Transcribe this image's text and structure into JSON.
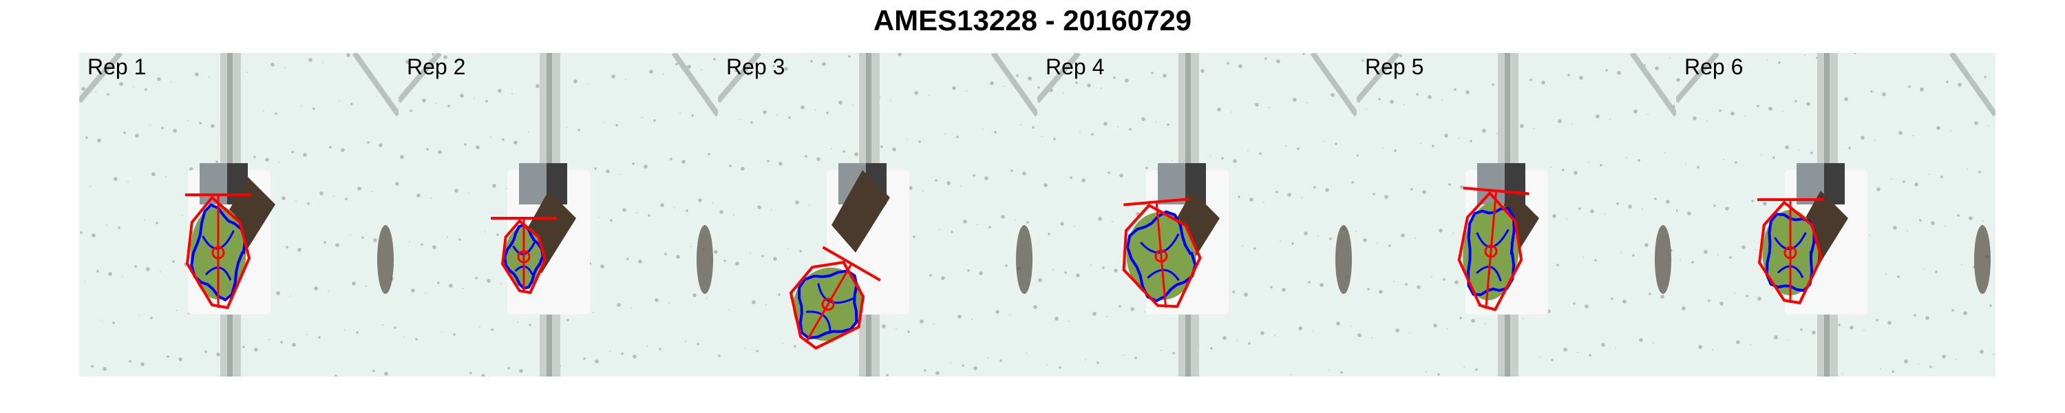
{
  "title": "AMES13228 - 20160729",
  "panels": [
    {
      "label": "Rep 1"
    },
    {
      "label": "Rep 2"
    },
    {
      "label": "Rep 3"
    },
    {
      "label": "Rep 4"
    },
    {
      "label": "Rep 5"
    },
    {
      "label": "Rep 6"
    }
  ],
  "colors": {
    "background": "#dfefeb",
    "hull_outline": "#ff0000",
    "leaf_contour": "#0000ff",
    "leaf_fill": "#7fa34a",
    "soil": "#4a3a2c"
  }
}
